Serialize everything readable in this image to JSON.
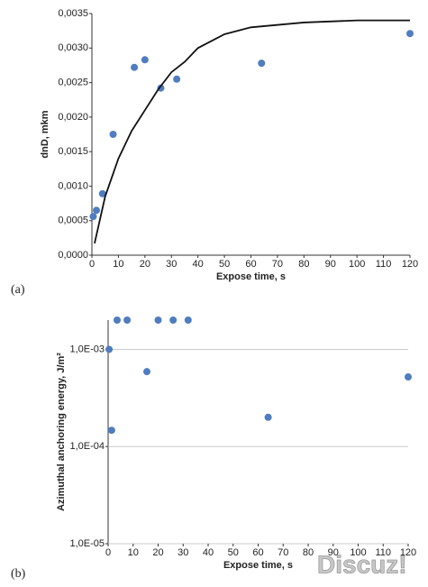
{
  "chart_data": [
    {
      "type": "scatter",
      "panel_label": "(a)",
      "x_label": "Expose time, s",
      "y_label": "dnD, mkm",
      "xlim": [
        0,
        120
      ],
      "xticks": [
        0,
        10,
        20,
        30,
        40,
        50,
        60,
        70,
        80,
        90,
        100,
        110,
        120
      ],
      "ylim": [
        0,
        0.0035
      ],
      "yticks": [
        {
          "value": 0,
          "label": "0,0000"
        },
        {
          "value": 0.0005,
          "label": "0,0005"
        },
        {
          "value": 0.001,
          "label": "0,0010"
        },
        {
          "value": 0.0015,
          "label": "0,0015"
        },
        {
          "value": 0.002,
          "label": "0,0020"
        },
        {
          "value": 0.0025,
          "label": "0,0025"
        },
        {
          "value": 0.003,
          "label": "0,0030"
        },
        {
          "value": 0.0035,
          "label": "0,0035"
        }
      ],
      "grid": false,
      "log_y": false,
      "series": [
        {
          "type": "scatter",
          "color": "#4f7dbf",
          "x": [
            0.5,
            1.7,
            4,
            8,
            16,
            20,
            26,
            32,
            64,
            120
          ],
          "values": [
            0.00056,
            0.00065,
            0.00089,
            0.00175,
            0.00272,
            0.00283,
            0.00242,
            0.00255,
            0.00278,
            0.00321
          ]
        },
        {
          "type": "line",
          "color": "#111111",
          "x": [
            1,
            5,
            10,
            15,
            20,
            25,
            30,
            35,
            40,
            50,
            60,
            80,
            100,
            120
          ],
          "values": [
            0.00017,
            0.00085,
            0.0014,
            0.0018,
            0.0021,
            0.0024,
            0.00265,
            0.0028,
            0.003,
            0.0032,
            0.0033,
            0.00337,
            0.0034,
            0.0034
          ]
        }
      ]
    },
    {
      "type": "scatter",
      "panel_label": "(b)",
      "x_label": "Expose time, s",
      "y_label": "Azimuthal anchoring energy, J/m²",
      "xlim": [
        0,
        120
      ],
      "xticks": [
        0,
        10,
        20,
        30,
        40,
        50,
        60,
        70,
        80,
        90,
        100,
        110,
        120
      ],
      "ylim": [
        1e-05,
        0.002
      ],
      "yticks": [
        {
          "value": 1e-05,
          "label": "1,0E-05"
        },
        {
          "value": 0.0001,
          "label": "1,0E-04"
        },
        {
          "value": 0.001,
          "label": "1,0E-03"
        }
      ],
      "grid": true,
      "log_y": true,
      "series": [
        {
          "type": "scatter",
          "color": "#4f7dbf",
          "x": [
            0.4,
            1.4,
            3.6,
            7.6,
            15.5,
            20,
            26,
            32,
            64,
            120
          ],
          "values": [
            0.001,
            0.000147,
            0.002,
            0.002,
            0.00059,
            0.002,
            0.002,
            0.002,
            0.0002,
            0.00052
          ]
        }
      ]
    }
  ],
  "watermark": "Discuz!"
}
